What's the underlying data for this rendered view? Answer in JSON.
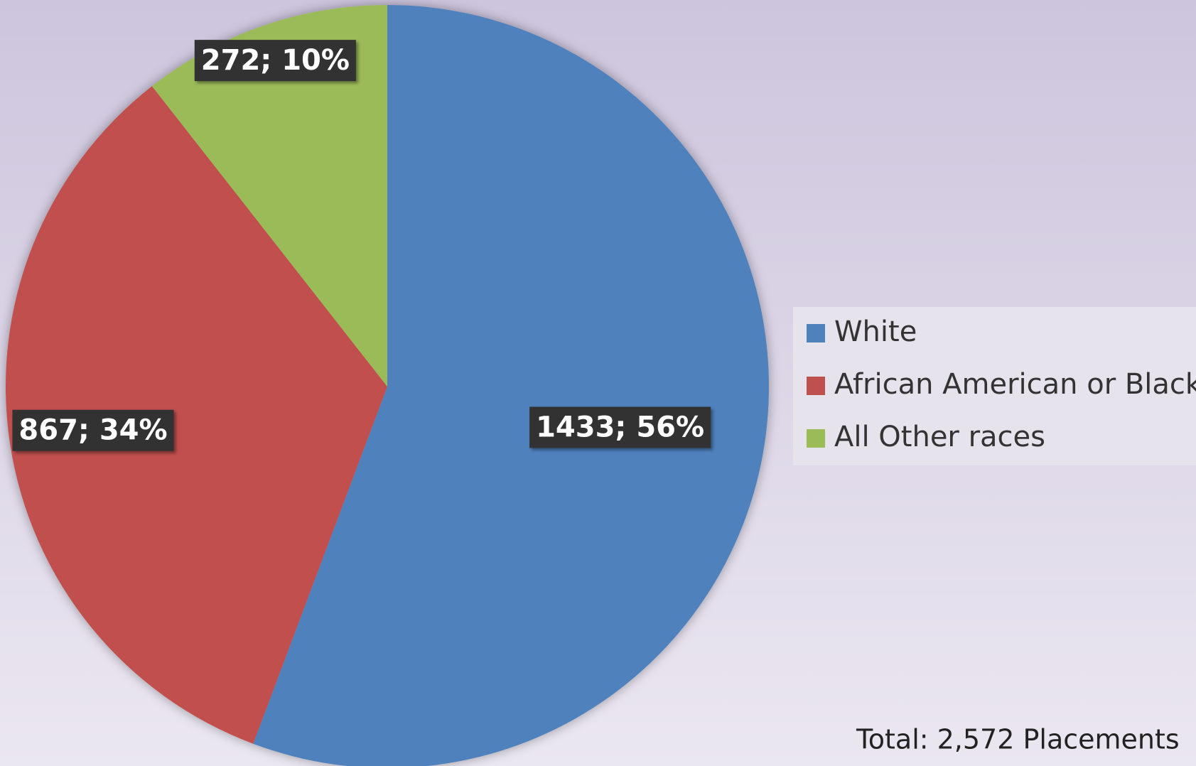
{
  "chart_data": {
    "type": "pie",
    "categories": [
      "White",
      "African American or Black",
      "All Other races"
    ],
    "values": [
      1433,
      867,
      272
    ],
    "value_labels": [
      "1433; 56%",
      "867; 34%",
      "272; 10%"
    ],
    "colors": [
      "#4f81bd",
      "#c0504d",
      "#9bbb59"
    ],
    "annotation": "Total:  2,572 Placements",
    "legend": "right"
  }
}
